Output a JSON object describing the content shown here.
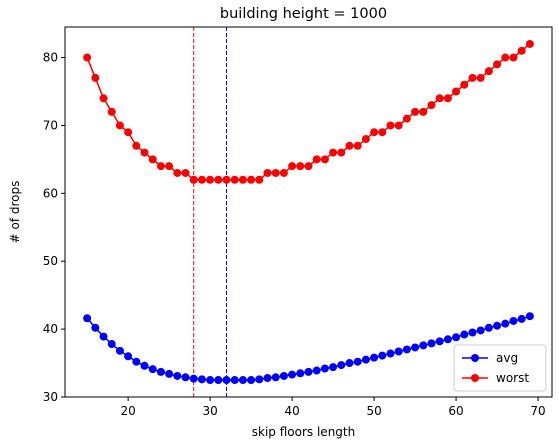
{
  "chart_data": {
    "type": "line",
    "title": "building height = 1000",
    "xlabel": "skip floors length",
    "ylabel": "# of drops",
    "xlim": [
      12.3,
      71.7
    ],
    "ylim": [
      30,
      84.5
    ],
    "xticks": [
      20,
      30,
      40,
      50,
      60,
      70
    ],
    "yticks": [
      30,
      40,
      50,
      60,
      70,
      80
    ],
    "grid": false,
    "legend": "lower-right",
    "vlines": [
      {
        "x": 28,
        "color": "#ff0000",
        "style": "dashed"
      },
      {
        "x": 32,
        "color": "#0000ff",
        "style": "dashed"
      }
    ],
    "x": [
      15,
      16,
      17,
      18,
      19,
      20,
      21,
      22,
      23,
      24,
      25,
      26,
      27,
      28,
      29,
      30,
      31,
      32,
      33,
      34,
      35,
      36,
      37,
      38,
      39,
      40,
      41,
      42,
      43,
      44,
      45,
      46,
      47,
      48,
      49,
      50,
      51,
      52,
      53,
      54,
      55,
      56,
      57,
      58,
      59,
      60,
      61,
      62,
      63,
      64,
      65,
      66,
      67,
      68,
      69
    ],
    "series": [
      {
        "name": "avg",
        "color": "#0000ff",
        "values": [
          41.6,
          40.2,
          38.9,
          37.8,
          36.8,
          36.0,
          35.2,
          34.6,
          34.1,
          33.7,
          33.4,
          33.1,
          32.9,
          32.7,
          32.6,
          32.5,
          32.5,
          32.5,
          32.5,
          32.5,
          32.5,
          32.6,
          32.8,
          32.9,
          33.1,
          33.3,
          33.5,
          33.7,
          33.9,
          34.2,
          34.4,
          34.7,
          35.0,
          35.2,
          35.5,
          35.8,
          36.1,
          36.4,
          36.7,
          37.0,
          37.3,
          37.6,
          37.9,
          38.2,
          38.5,
          38.8,
          39.2,
          39.5,
          39.8,
          40.2,
          40.5,
          40.8,
          41.2,
          41.5,
          41.9
        ]
      },
      {
        "name": "worst",
        "color": "#ff0000",
        "values": [
          80,
          77,
          74,
          72,
          70,
          69,
          67,
          66,
          65,
          64,
          64,
          63,
          63,
          62,
          62,
          62,
          62,
          62,
          62,
          62,
          62,
          62,
          63,
          63,
          63,
          64,
          64,
          64,
          65,
          65,
          66,
          66,
          67,
          67,
          68,
          69,
          69,
          70,
          70,
          71,
          72,
          72,
          73,
          74,
          74,
          75,
          76,
          77,
          77,
          78,
          79,
          80,
          80,
          81,
          82
        ]
      }
    ]
  }
}
